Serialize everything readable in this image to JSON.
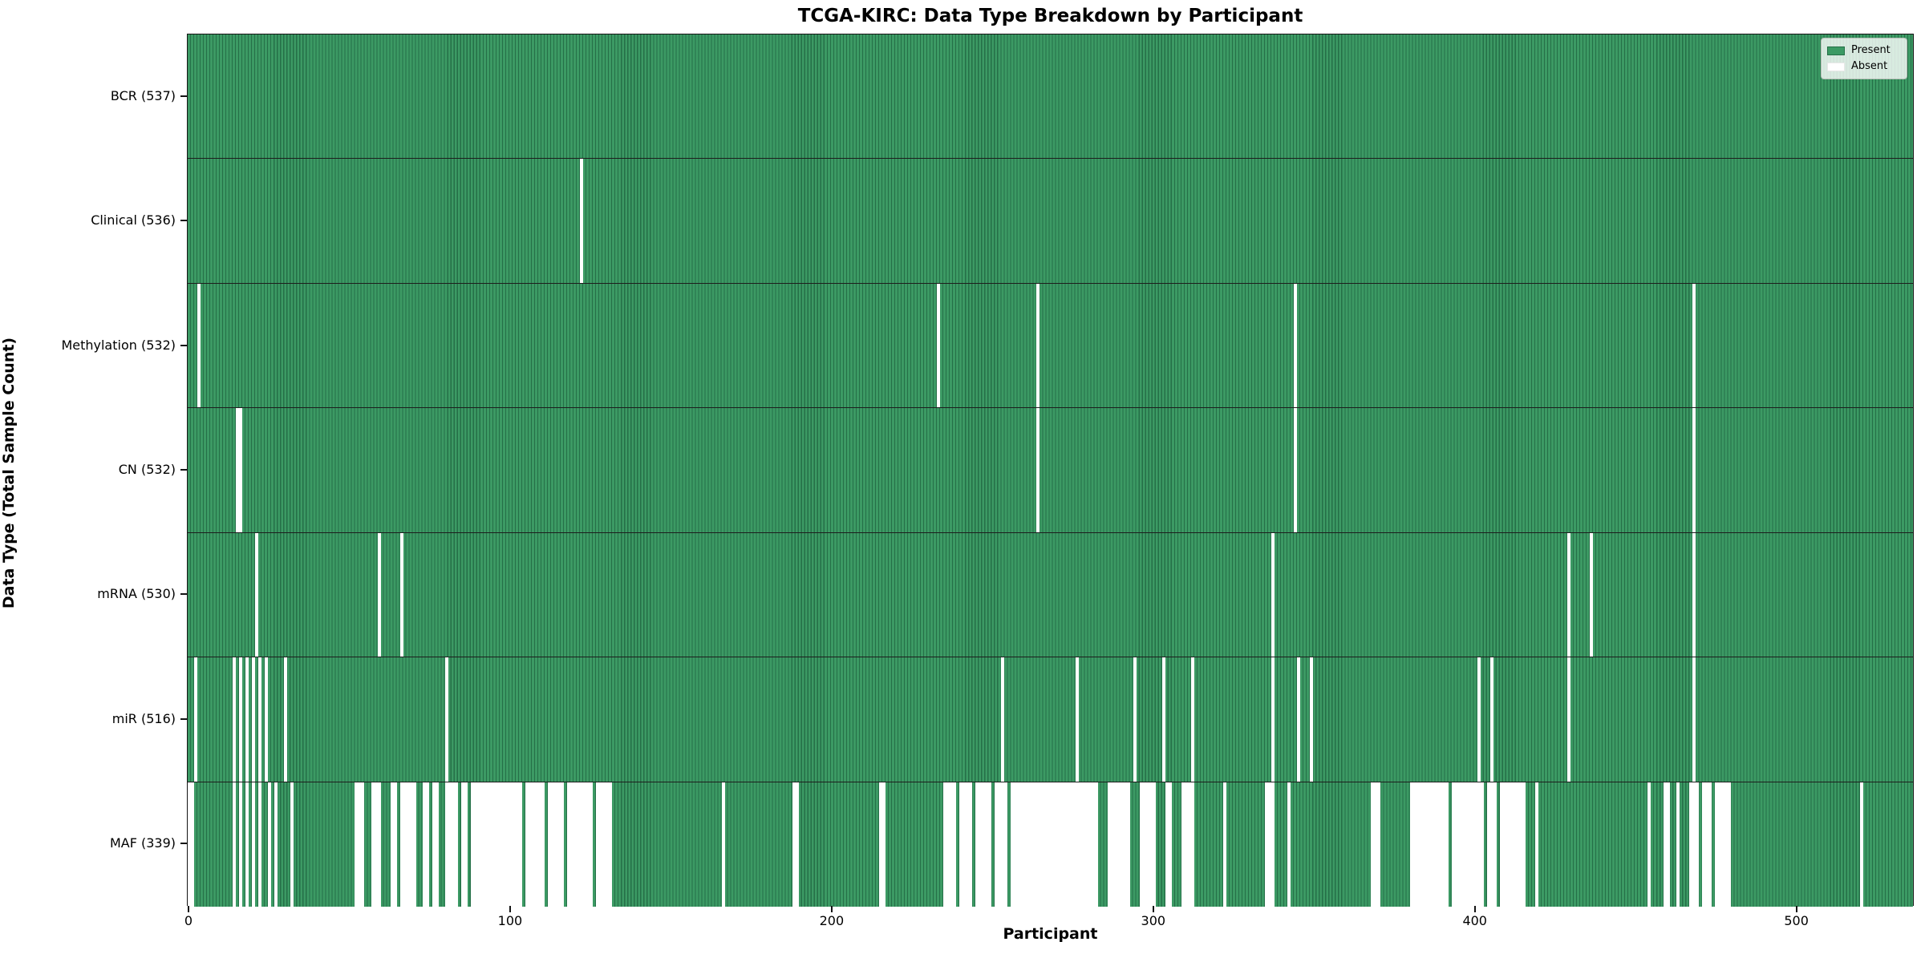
{
  "title": "TCGA-KIRC: Data Type Breakdown by Participant",
  "xlabel": "Participant",
  "ylabel": "Data Type (Total Sample Count)",
  "legend": {
    "present": "Present",
    "absent": "Absent"
  },
  "colors": {
    "present_fill": "#3c9a64",
    "present_edge": "#256f47",
    "absent": "#ffffff",
    "row_divider": "#1d1d1d",
    "plot_border": "#141414"
  },
  "chart_data": {
    "type": "heatmap",
    "title": "TCGA-KIRC: Data Type Breakdown by Participant",
    "xlabel": "Participant",
    "ylabel": "Data Type (Total Sample Count)",
    "legend_entries": [
      "Present",
      "Absent"
    ],
    "legend_position": "upper right",
    "n_participants": 537,
    "x_ticks": [
      0,
      100,
      200,
      300,
      400,
      500
    ],
    "x_range": [
      0,
      537
    ],
    "rows": [
      {
        "label": "BCR (537)",
        "data_type": "BCR",
        "present_count": 537,
        "absent_count": 0,
        "absent_runs": []
      },
      {
        "label": "Clinical (536)",
        "data_type": "Clinical",
        "present_count": 536,
        "absent_count": 1,
        "absent_runs": [
          [
            122,
            122
          ]
        ]
      },
      {
        "label": "Methylation (532)",
        "data_type": "Methylation",
        "present_count": 532,
        "absent_count": 5,
        "absent_runs": [
          [
            3,
            3
          ],
          [
            233,
            233
          ],
          [
            264,
            264
          ],
          [
            344,
            344
          ],
          [
            468,
            468
          ]
        ]
      },
      {
        "label": "CN (532)",
        "data_type": "CN",
        "present_count": 532,
        "absent_count": 5,
        "absent_runs": [
          [
            15,
            16
          ],
          [
            264,
            264
          ],
          [
            344,
            344
          ],
          [
            468,
            468
          ]
        ]
      },
      {
        "label": "mRNA (530)",
        "data_type": "mRNA",
        "present_count": 530,
        "absent_count": 7,
        "absent_runs": [
          [
            21,
            21
          ],
          [
            59,
            59
          ],
          [
            66,
            66
          ],
          [
            337,
            337
          ],
          [
            429,
            429
          ],
          [
            436,
            436
          ],
          [
            468,
            468
          ]
        ]
      },
      {
        "label": "miR (516)",
        "data_type": "miR",
        "present_count": 516,
        "absent_count": 21,
        "absent_runs": [
          [
            2,
            2
          ],
          [
            14,
            14
          ],
          [
            16,
            16
          ],
          [
            18,
            18
          ],
          [
            20,
            20
          ],
          [
            22,
            22
          ],
          [
            24,
            24
          ],
          [
            30,
            30
          ],
          [
            80,
            80
          ],
          [
            253,
            253
          ],
          [
            276,
            276
          ],
          [
            294,
            294
          ],
          [
            303,
            303
          ],
          [
            312,
            312
          ],
          [
            337,
            337
          ],
          [
            345,
            345
          ],
          [
            349,
            349
          ],
          [
            401,
            401
          ],
          [
            405,
            405
          ],
          [
            429,
            429
          ],
          [
            468,
            468
          ]
        ]
      },
      {
        "label": "MAF (339)",
        "data_type": "MAF",
        "present_count": 339,
        "absent_count": 198,
        "absent_runs": [
          [
            0,
            1
          ],
          [
            14,
            14
          ],
          [
            16,
            16
          ],
          [
            18,
            18
          ],
          [
            20,
            20
          ],
          [
            22,
            22
          ],
          [
            25,
            25
          ],
          [
            27,
            27
          ],
          [
            32,
            32
          ],
          [
            52,
            54
          ],
          [
            57,
            59
          ],
          [
            63,
            64
          ],
          [
            66,
            70
          ],
          [
            73,
            74
          ],
          [
            76,
            77
          ],
          [
            80,
            83
          ],
          [
            85,
            86
          ],
          [
            88,
            103
          ],
          [
            105,
            110
          ],
          [
            112,
            116
          ],
          [
            118,
            125
          ],
          [
            127,
            131
          ],
          [
            166,
            166
          ],
          [
            188,
            189
          ],
          [
            215,
            216
          ],
          [
            235,
            238
          ],
          [
            240,
            243
          ],
          [
            245,
            249
          ],
          [
            251,
            254
          ],
          [
            256,
            282
          ],
          [
            286,
            292
          ],
          [
            296,
            300
          ],
          [
            304,
            305
          ],
          [
            309,
            312
          ],
          [
            322,
            322
          ],
          [
            335,
            337
          ],
          [
            342,
            342
          ],
          [
            368,
            370
          ],
          [
            380,
            391
          ],
          [
            393,
            402
          ],
          [
            404,
            406
          ],
          [
            408,
            415
          ],
          [
            419,
            419
          ],
          [
            454,
            454
          ],
          [
            459,
            460
          ],
          [
            463,
            463
          ],
          [
            467,
            469
          ],
          [
            471,
            473
          ],
          [
            475,
            479
          ],
          [
            520,
            520
          ]
        ]
      }
    ]
  }
}
